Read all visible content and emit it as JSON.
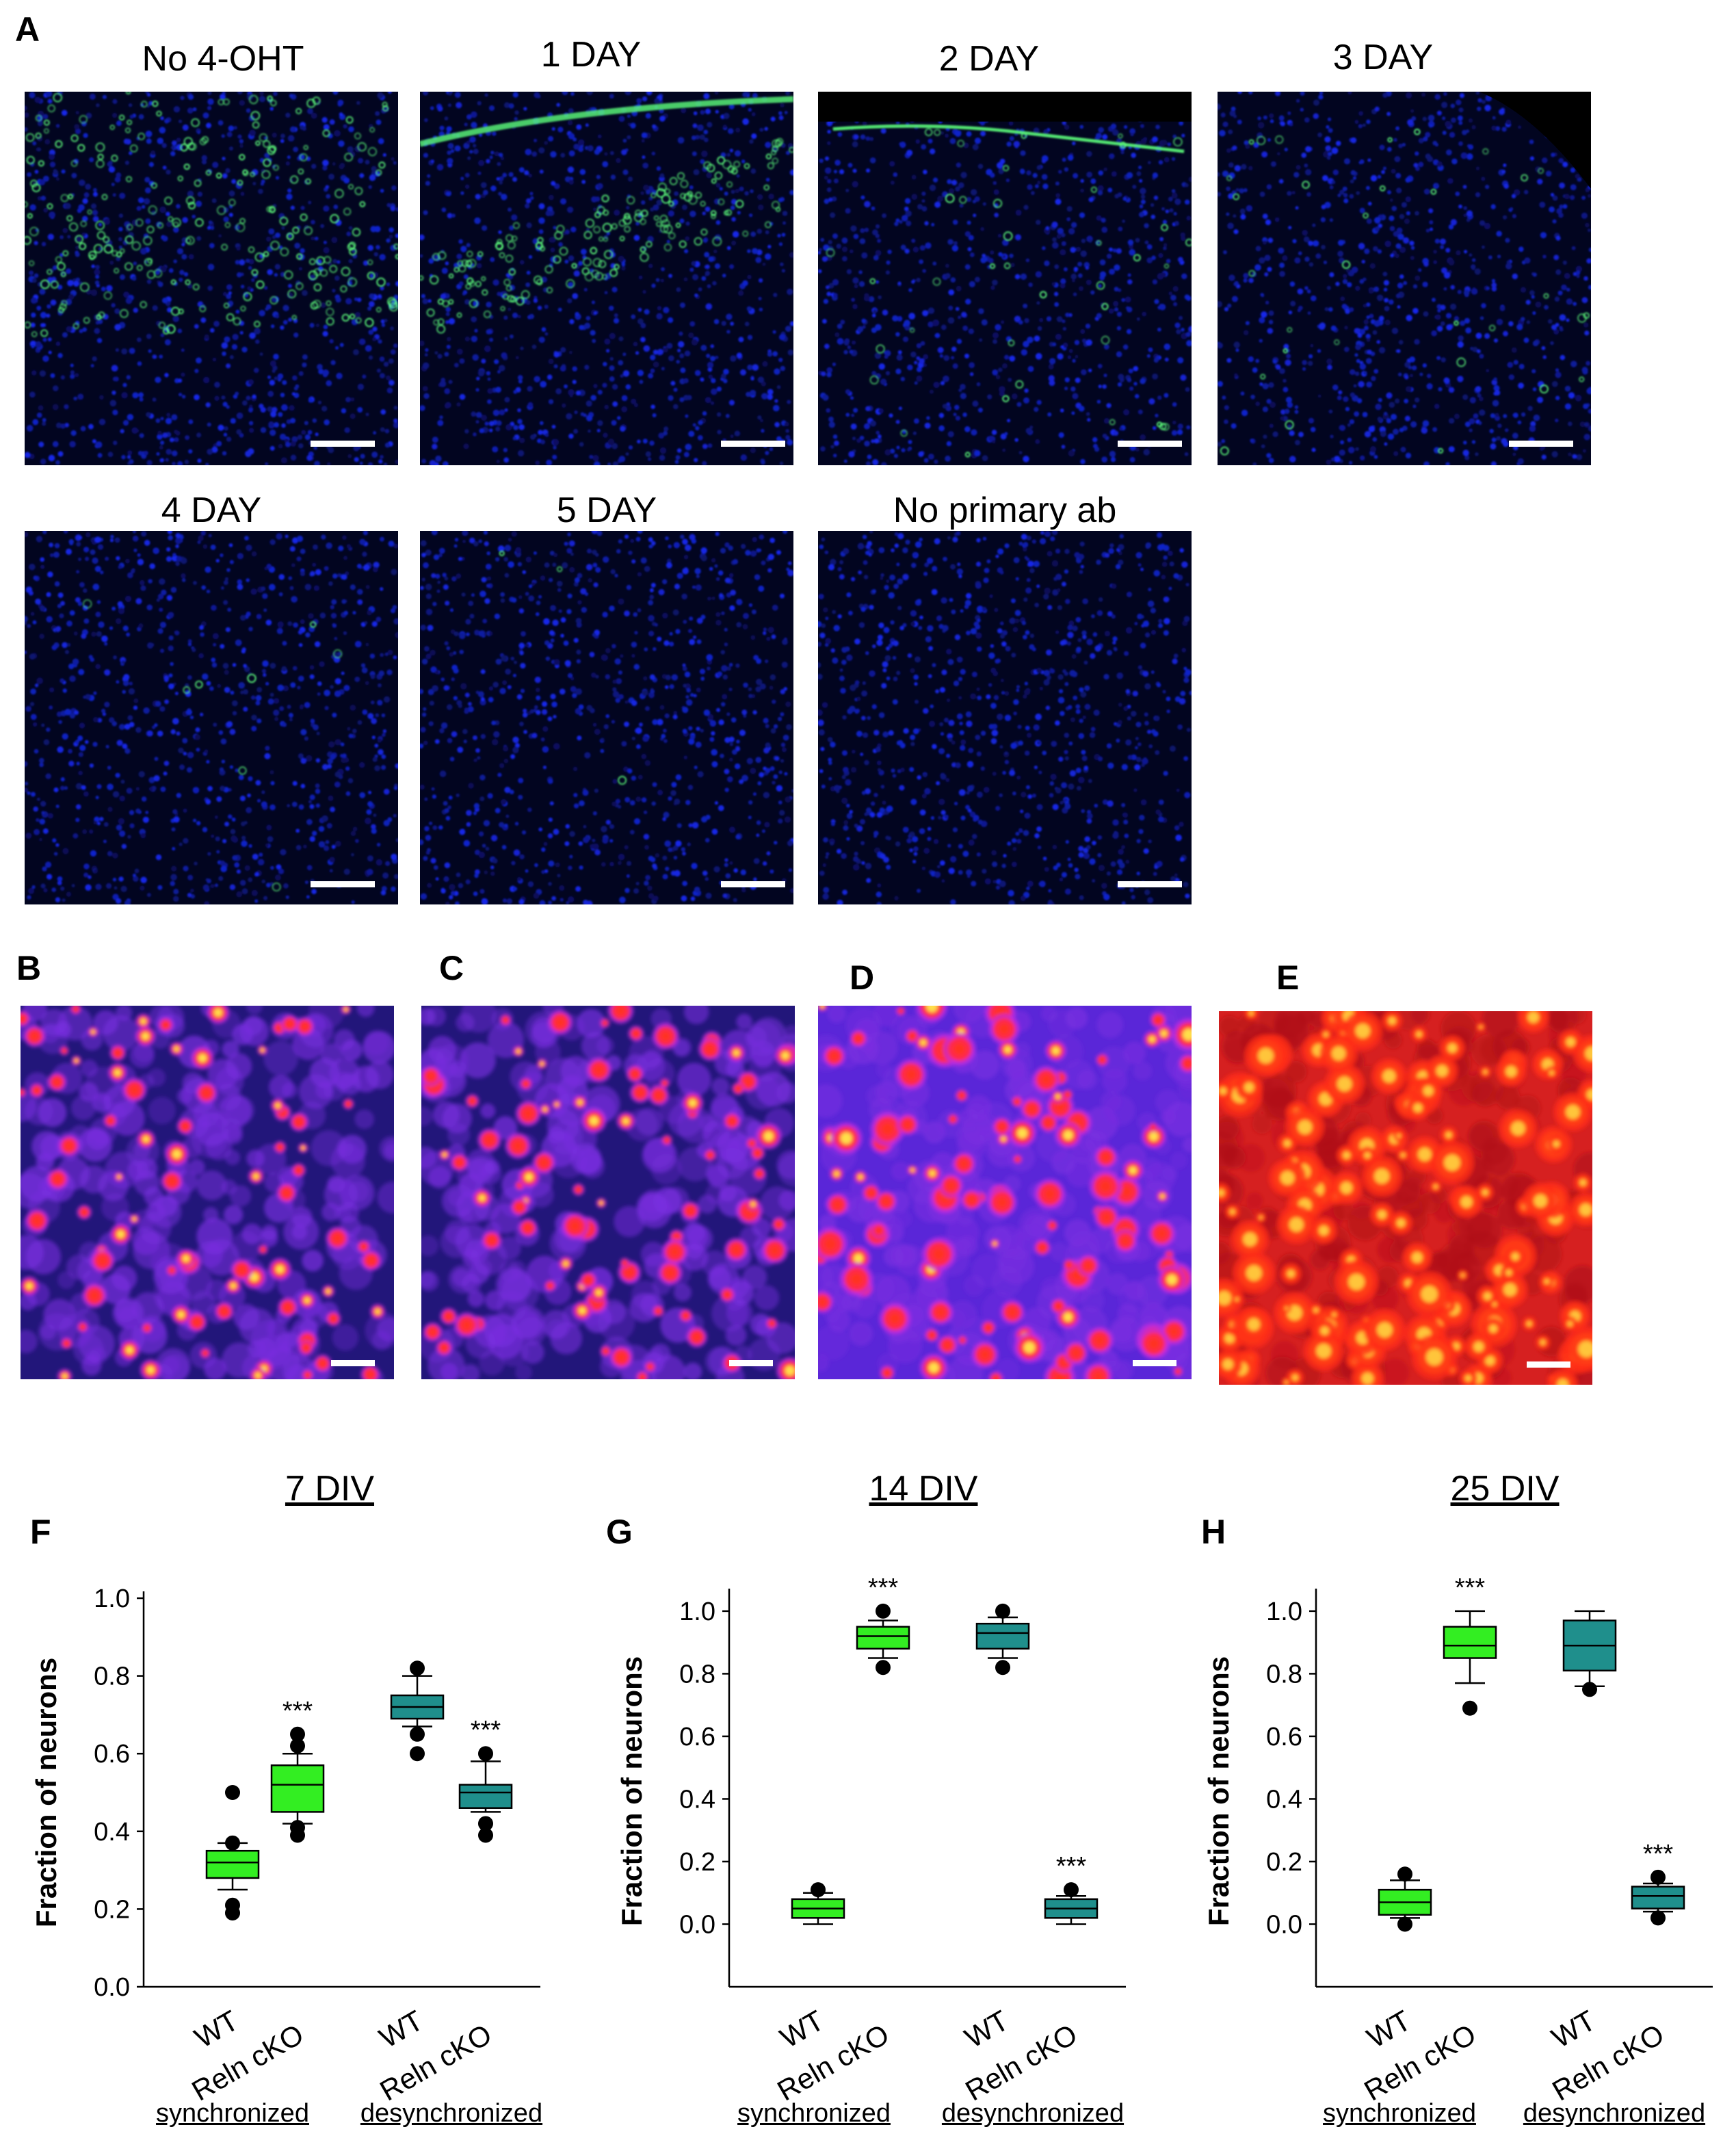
{
  "panel_a": {
    "letter": "A",
    "titles": [
      "No 4-OHT",
      "1 DAY",
      "2 DAY",
      "3 DAY",
      "4 DAY",
      "5 DAY",
      "No primary ab"
    ]
  },
  "panel_b": {
    "letter": "B"
  },
  "panel_c": {
    "letter": "C"
  },
  "panel_d": {
    "letter": "D"
  },
  "panel_e": {
    "letter": "E"
  },
  "colors": {
    "wt_box": "#33ee22",
    "cko_box": "#1f8f8c",
    "dapi_blue": "#1f2fd0",
    "gfp_green": "#59ff7a",
    "fire_low": "#1a1460",
    "fire_mid": "#9a2ae0",
    "fire_high": "#ff2a1a",
    "fire_top": "#ffd23a"
  },
  "chart_data": [
    {
      "panel": "F",
      "type": "box",
      "title": "7 DIV",
      "ylabel": "Fraction of neurons",
      "ylim": [
        0.0,
        1.0
      ],
      "yticks": [
        "0.0",
        "0.2",
        "0.4",
        "0.6",
        "0.8",
        "1.0"
      ],
      "categories": [
        "WT",
        "Reln cKO",
        "WT",
        "Reln cKO"
      ],
      "groups": [
        "synchronized",
        "desynchronized"
      ],
      "boxes": [
        {
          "group": "synchronized",
          "genotype": "WT",
          "min": 0.25,
          "q1": 0.28,
          "median": 0.32,
          "q3": 0.35,
          "max": 0.37,
          "outliers": [
            0.19,
            0.21,
            0.37,
            0.5
          ],
          "sig": ""
        },
        {
          "group": "synchronized",
          "genotype": "Reln cKO",
          "min": 0.42,
          "q1": 0.45,
          "median": 0.52,
          "q3": 0.57,
          "max": 0.6,
          "outliers": [
            0.39,
            0.41,
            0.62,
            0.65
          ],
          "sig": "***"
        },
        {
          "group": "desynchronized",
          "genotype": "WT",
          "min": 0.67,
          "q1": 0.69,
          "median": 0.72,
          "q3": 0.75,
          "max": 0.8,
          "outliers": [
            0.6,
            0.65,
            0.82
          ],
          "sig": ""
        },
        {
          "group": "desynchronized",
          "genotype": "Reln cKO",
          "min": 0.45,
          "q1": 0.46,
          "median": 0.5,
          "q3": 0.52,
          "max": 0.58,
          "outliers": [
            0.39,
            0.42,
            0.6
          ],
          "sig": "***"
        }
      ]
    },
    {
      "panel": "G",
      "type": "box",
      "title": "14 DIV",
      "ylabel": "Fraction of neurons",
      "ylim": [
        -0.2,
        1.05
      ],
      "yticks": [
        "0.0",
        "0.2",
        "0.4",
        "0.6",
        "0.8",
        "1.0"
      ],
      "categories": [
        "WT",
        "Reln cKO",
        "WT",
        "Reln cKO"
      ],
      "groups": [
        "synchronized",
        "desynchronized"
      ],
      "boxes": [
        {
          "group": "synchronized",
          "genotype": "WT",
          "min": 0.0,
          "q1": 0.02,
          "median": 0.05,
          "q3": 0.08,
          "max": 0.1,
          "outliers": [
            0.11
          ],
          "sig": ""
        },
        {
          "group": "synchronized",
          "genotype": "Reln cKO",
          "min": 0.85,
          "q1": 0.88,
          "median": 0.92,
          "q3": 0.95,
          "max": 0.97,
          "outliers": [
            0.82,
            1.0
          ],
          "sig": "***"
        },
        {
          "group": "desynchronized",
          "genotype": "WT",
          "min": 0.85,
          "q1": 0.88,
          "median": 0.93,
          "q3": 0.96,
          "max": 0.98,
          "outliers": [
            0.82,
            1.0
          ],
          "sig": ""
        },
        {
          "group": "desynchronized",
          "genotype": "Reln cKO",
          "min": 0.0,
          "q1": 0.02,
          "median": 0.05,
          "q3": 0.08,
          "max": 0.09,
          "outliers": [
            0.11
          ],
          "sig": "***"
        }
      ]
    },
    {
      "panel": "H",
      "type": "box",
      "title": "25 DIV",
      "ylabel": "Fraction of neurons",
      "ylim": [
        -0.2,
        1.05
      ],
      "yticks": [
        "0.0",
        "0.2",
        "0.4",
        "0.6",
        "0.8",
        "1.0"
      ],
      "categories": [
        "WT",
        "Reln cKO",
        "WT",
        "Reln cKO"
      ],
      "groups": [
        "synchronized",
        "desynchronized"
      ],
      "boxes": [
        {
          "group": "synchronized",
          "genotype": "WT",
          "min": 0.02,
          "q1": 0.03,
          "median": 0.07,
          "q3": 0.11,
          "max": 0.14,
          "outliers": [
            0.0,
            0.16
          ],
          "sig": ""
        },
        {
          "group": "synchronized",
          "genotype": "Reln cKO",
          "min": 0.77,
          "q1": 0.85,
          "median": 0.89,
          "q3": 0.95,
          "max": 1.0,
          "outliers": [
            0.69
          ],
          "sig": "***"
        },
        {
          "group": "desynchronized",
          "genotype": "WT",
          "min": 0.76,
          "q1": 0.81,
          "median": 0.89,
          "q3": 0.97,
          "max": 1.0,
          "outliers": [
            0.75
          ],
          "sig": ""
        },
        {
          "group": "desynchronized",
          "genotype": "Reln cKO",
          "min": 0.04,
          "q1": 0.05,
          "median": 0.09,
          "q3": 0.12,
          "max": 0.13,
          "outliers": [
            0.02,
            0.15
          ],
          "sig": "***"
        }
      ]
    }
  ]
}
